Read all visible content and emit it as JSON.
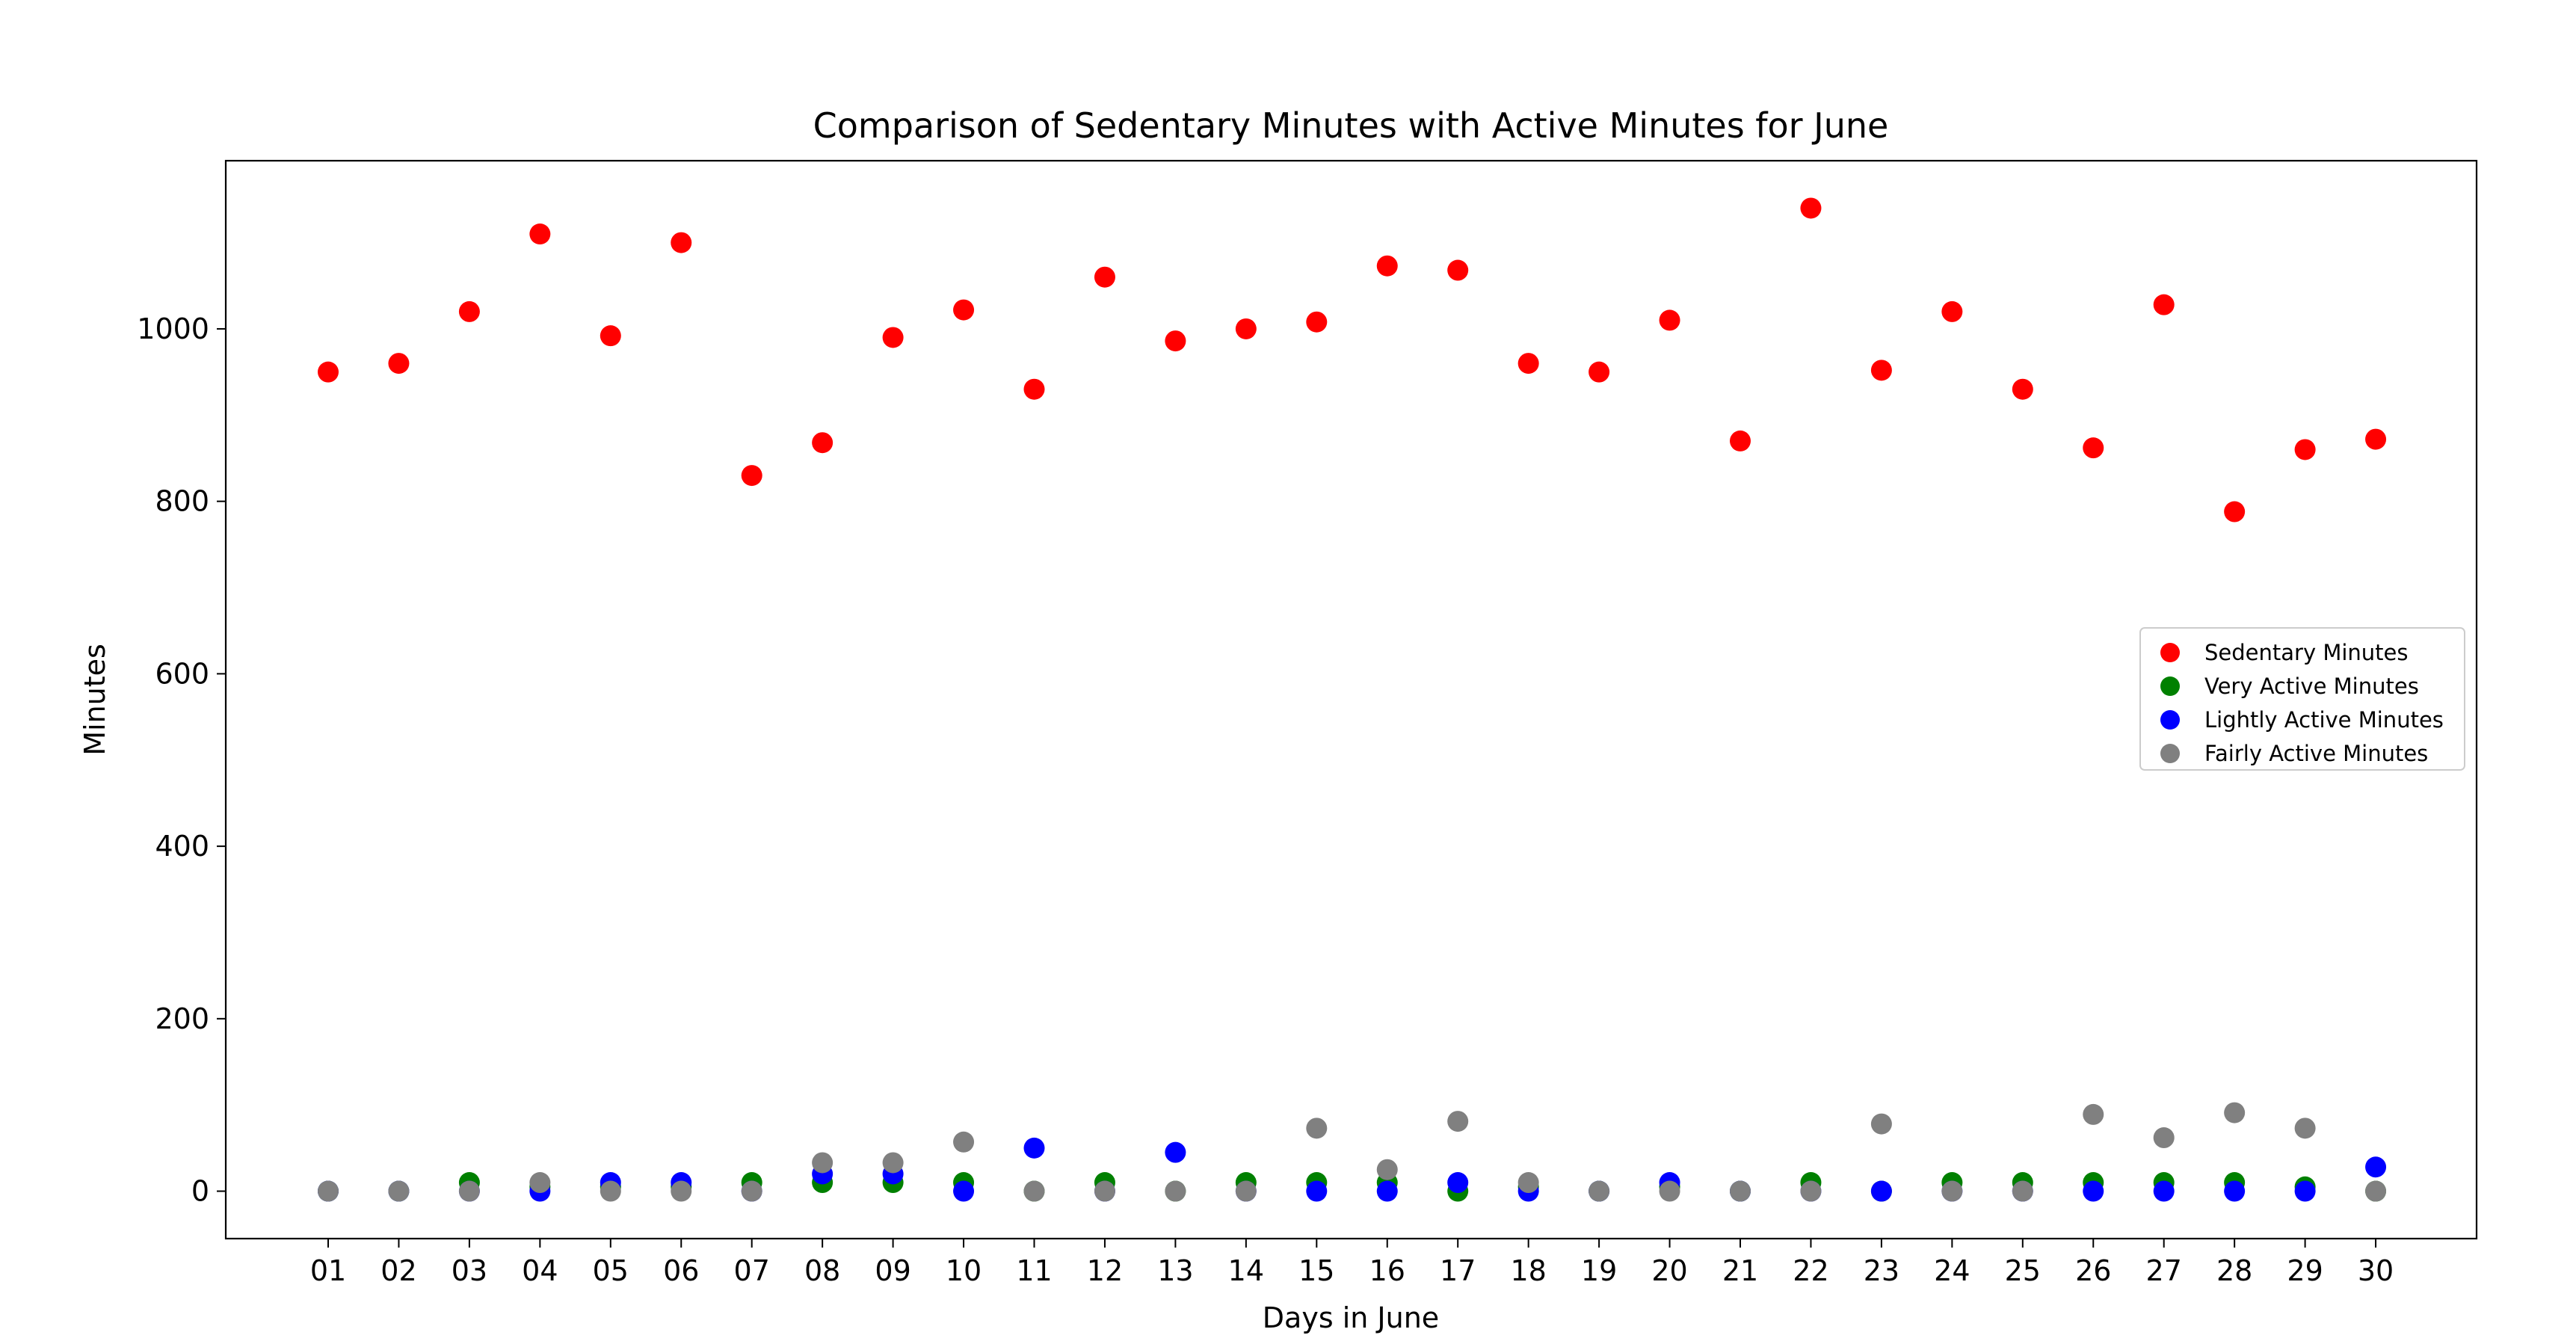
{
  "chart_data": {
    "type": "scatter",
    "title": "Comparison of Sedentary Minutes with Active Minutes for June",
    "xlabel": "Days in June",
    "ylabel": "Minutes",
    "categories": [
      "01",
      "02",
      "03",
      "04",
      "05",
      "06",
      "07",
      "08",
      "09",
      "10",
      "11",
      "12",
      "13",
      "14",
      "15",
      "16",
      "17",
      "18",
      "19",
      "20",
      "21",
      "22",
      "23",
      "24",
      "25",
      "26",
      "27",
      "28",
      "29",
      "30"
    ],
    "ylim": [
      -55,
      1195
    ],
    "yticks": [
      0,
      200,
      400,
      600,
      800,
      1000
    ],
    "grid": false,
    "legend_position": "right",
    "series": [
      {
        "name": "Sedentary Minutes",
        "color": "#ff0000",
        "values": [
          950,
          960,
          1020,
          1110,
          992,
          1100,
          830,
          868,
          990,
          1022,
          930,
          1060,
          986,
          1000,
          1008,
          1073,
          1068,
          960,
          950,
          1010,
          870,
          1140,
          952,
          1020,
          930,
          862,
          1028,
          788,
          860,
          872
        ]
      },
      {
        "name": "Very Active Minutes",
        "color": "#008000",
        "values": [
          0,
          0,
          10,
          5,
          5,
          5,
          10,
          10,
          10,
          10,
          0,
          10,
          0,
          10,
          10,
          10,
          0,
          5,
          0,
          5,
          0,
          10,
          0,
          10,
          10,
          10,
          10,
          10,
          5,
          0
        ]
      },
      {
        "name": "Lightly Active Minutes",
        "color": "#0000ff",
        "values": [
          0,
          0,
          0,
          0,
          10,
          10,
          0,
          20,
          20,
          0,
          50,
          0,
          45,
          0,
          0,
          0,
          10,
          0,
          0,
          10,
          0,
          0,
          0,
          0,
          0,
          0,
          0,
          0,
          0,
          28
        ]
      },
      {
        "name": "Fairly Active Minutes",
        "color": "#808080",
        "values": [
          0,
          0,
          0,
          10,
          0,
          0,
          0,
          33,
          33,
          57,
          0,
          0,
          0,
          0,
          73,
          25,
          81,
          10,
          0,
          0,
          0,
          0,
          78,
          0,
          0,
          89,
          62,
          91,
          73,
          0
        ]
      }
    ]
  }
}
